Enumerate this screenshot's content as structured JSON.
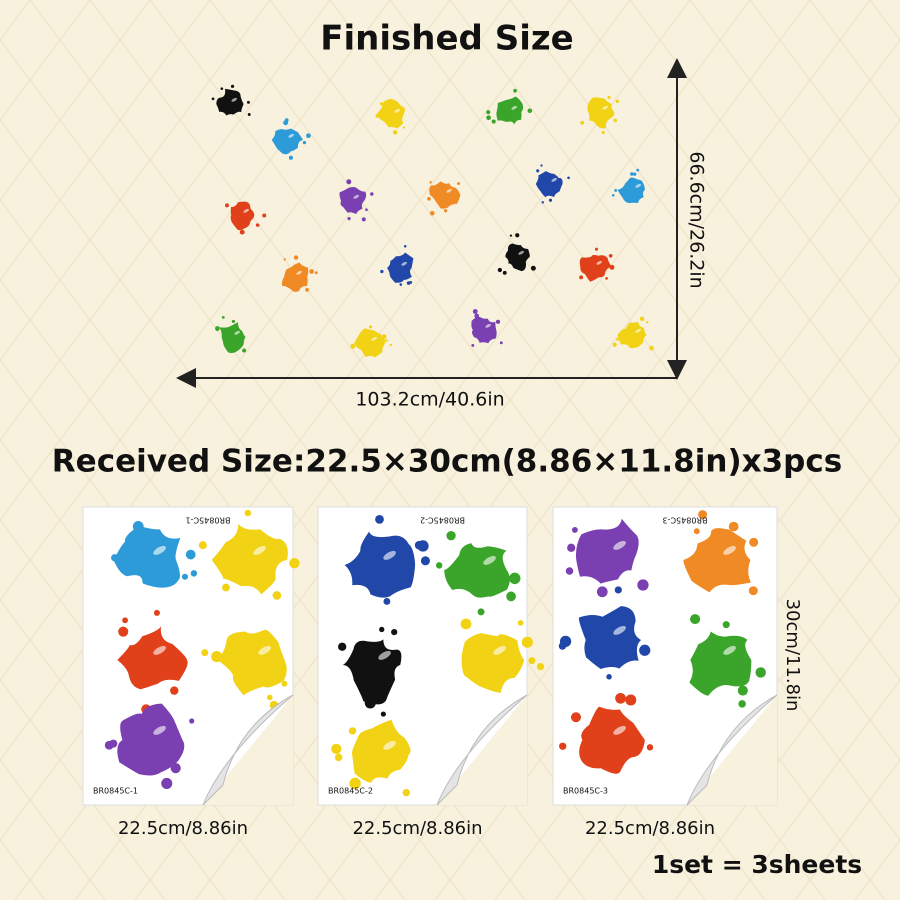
{
  "header": {
    "title": "Finished Size"
  },
  "finished": {
    "height_label": "66.6cm/26.2in",
    "width_label": "103.2cm/40.6in"
  },
  "received": {
    "title": "Received Size:22.5×30cm(8.86×11.8in)x3pcs",
    "height_label": "30cm/11.8in",
    "sheets": [
      {
        "code": "BR0845C-1",
        "width_label": "22.5cm/8.86in"
      },
      {
        "code": "BR0845C-2",
        "width_label": "22.5cm/8.86in"
      },
      {
        "code": "BR0845C-3",
        "width_label": "22.5cm/8.86in"
      }
    ],
    "set_note": "1set = 3sheets"
  }
}
